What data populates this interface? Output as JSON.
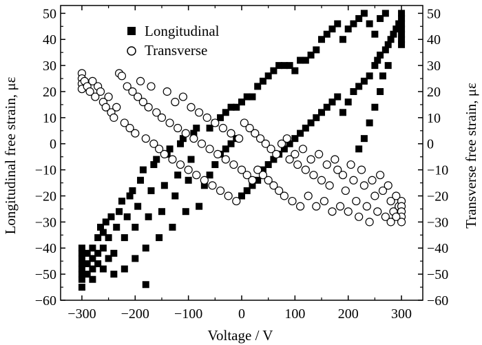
{
  "chart_data": {
    "type": "scatter",
    "xlabel": "Voltage / V",
    "ylabel_left": "Longitudinal free strain, με",
    "ylabel_right": "Transverse free strain, με",
    "xlim": [
      -340,
      340
    ],
    "ylim": [
      -60,
      53
    ],
    "x_ticks": [
      -300,
      -200,
      -100,
      0,
      100,
      200,
      300
    ],
    "y_ticks": [
      -60,
      -50,
      -40,
      -30,
      -20,
      -10,
      0,
      10,
      20,
      30,
      40,
      50
    ],
    "x_tick_labels": [
      "−300",
      "−200",
      "−100",
      "0",
      "100",
      "200",
      "300"
    ],
    "y_tick_labels": [
      "−60",
      "−50",
      "−40",
      "−30",
      "−20",
      "−10",
      "0",
      "10",
      "20",
      "30",
      "40",
      "50"
    ],
    "grid": false,
    "legend_position": "top-center",
    "series": [
      {
        "name": "Longitudinal",
        "marker": "filled-square",
        "color": "#000000",
        "points": [
          [
            -300,
            -55
          ],
          [
            -300,
            -52
          ],
          [
            -300,
            -50
          ],
          [
            -300,
            -48
          ],
          [
            -300,
            -46
          ],
          [
            -300,
            -44
          ],
          [
            -300,
            -42
          ],
          [
            -300,
            -40
          ],
          [
            -290,
            -50
          ],
          [
            -290,
            -46
          ],
          [
            -290,
            -42
          ],
          [
            -280,
            -52
          ],
          [
            -280,
            -48
          ],
          [
            -280,
            -44
          ],
          [
            -280,
            -40
          ],
          [
            -270,
            -46
          ],
          [
            -270,
            -42
          ],
          [
            -270,
            -36
          ],
          [
            -265,
            -32
          ],
          [
            -260,
            -48
          ],
          [
            -260,
            -40
          ],
          [
            -260,
            -34
          ],
          [
            -255,
            -30
          ],
          [
            -250,
            -44
          ],
          [
            -250,
            -36
          ],
          [
            -245,
            -28
          ],
          [
            -240,
            -50
          ],
          [
            -240,
            -42
          ],
          [
            -235,
            -32
          ],
          [
            -230,
            -26
          ],
          [
            -225,
            -22
          ],
          [
            -220,
            -48
          ],
          [
            -220,
            -36
          ],
          [
            -215,
            -28
          ],
          [
            -210,
            -20
          ],
          [
            -205,
            -18
          ],
          [
            -200,
            -44
          ],
          [
            -200,
            -32
          ],
          [
            -195,
            -24
          ],
          [
            -190,
            -14
          ],
          [
            -185,
            -10
          ],
          [
            -180,
            -54
          ],
          [
            -180,
            -40
          ],
          [
            -175,
            -28
          ],
          [
            -170,
            -18
          ],
          [
            -165,
            -8
          ],
          [
            -160,
            -6
          ],
          [
            -155,
            -36
          ],
          [
            -150,
            -26
          ],
          [
            -145,
            -16
          ],
          [
            -140,
            -4
          ],
          [
            -135,
            -2
          ],
          [
            -130,
            -32
          ],
          [
            -125,
            -20
          ],
          [
            -120,
            -12
          ],
          [
            -115,
            0
          ],
          [
            -110,
            2
          ],
          [
            -105,
            -26
          ],
          [
            -100,
            -14
          ],
          [
            -95,
            -6
          ],
          [
            -90,
            4
          ],
          [
            -85,
            6
          ],
          [
            -80,
            -24
          ],
          [
            -70,
            -16
          ],
          [
            -60,
            -12
          ],
          [
            -50,
            -8
          ],
          [
            -40,
            -4
          ],
          [
            -30,
            -2
          ],
          [
            -20,
            0
          ],
          [
            -10,
            2
          ],
          [
            -60,
            6
          ],
          [
            -50,
            8
          ],
          [
            -40,
            10
          ],
          [
            -30,
            12
          ],
          [
            -20,
            14
          ],
          [
            -10,
            14
          ],
          [
            0,
            -20
          ],
          [
            10,
            -18
          ],
          [
            20,
            -16
          ],
          [
            30,
            -14
          ],
          [
            40,
            -10
          ],
          [
            50,
            -8
          ],
          [
            60,
            -6
          ],
          [
            70,
            -4
          ],
          [
            80,
            -2
          ],
          [
            90,
            0
          ],
          [
            0,
            16
          ],
          [
            10,
            18
          ],
          [
            20,
            18
          ],
          [
            30,
            22
          ],
          [
            40,
            24
          ],
          [
            50,
            26
          ],
          [
            60,
            28
          ],
          [
            70,
            30
          ],
          [
            80,
            30
          ],
          [
            90,
            30
          ],
          [
            100,
            2
          ],
          [
            110,
            4
          ],
          [
            120,
            6
          ],
          [
            130,
            8
          ],
          [
            140,
            10
          ],
          [
            150,
            12
          ],
          [
            160,
            14
          ],
          [
            170,
            16
          ],
          [
            180,
            18
          ],
          [
            100,
            28
          ],
          [
            110,
            32
          ],
          [
            120,
            32
          ],
          [
            130,
            34
          ],
          [
            140,
            36
          ],
          [
            150,
            40
          ],
          [
            160,
            42
          ],
          [
            170,
            44
          ],
          [
            180,
            46
          ],
          [
            190,
            12
          ],
          [
            200,
            16
          ],
          [
            210,
            20
          ],
          [
            220,
            22
          ],
          [
            230,
            24
          ],
          [
            240,
            26
          ],
          [
            250,
            30
          ],
          [
            255,
            32
          ],
          [
            260,
            34
          ],
          [
            190,
            40
          ],
          [
            200,
            44
          ],
          [
            210,
            46
          ],
          [
            220,
            48
          ],
          [
            230,
            50
          ],
          [
            240,
            46
          ],
          [
            250,
            42
          ],
          [
            260,
            48
          ],
          [
            270,
            50
          ],
          [
            270,
            36
          ],
          [
            275,
            38
          ],
          [
            280,
            40
          ],
          [
            285,
            42
          ],
          [
            290,
            44
          ],
          [
            295,
            46
          ],
          [
            300,
            38
          ],
          [
            300,
            40
          ],
          [
            300,
            42
          ],
          [
            300,
            44
          ],
          [
            300,
            46
          ],
          [
            300,
            48
          ],
          [
            300,
            50
          ],
          [
            220,
            -2
          ],
          [
            230,
            2
          ],
          [
            240,
            8
          ],
          [
            250,
            14
          ],
          [
            260,
            20
          ],
          [
            265,
            26
          ],
          [
            275,
            30
          ]
        ]
      },
      {
        "name": "Transverse",
        "marker": "open-circle",
        "color": "#000000",
        "points": [
          [
            -300,
            27
          ],
          [
            -300,
            25
          ],
          [
            -300,
            23
          ],
          [
            -300,
            21
          ],
          [
            -295,
            24
          ],
          [
            -290,
            22
          ],
          [
            -285,
            20
          ],
          [
            -280,
            24
          ],
          [
            -275,
            18
          ],
          [
            -270,
            22
          ],
          [
            -265,
            20
          ],
          [
            -260,
            16
          ],
          [
            -255,
            14
          ],
          [
            -250,
            18
          ],
          [
            -245,
            12
          ],
          [
            -240,
            10
          ],
          [
            -235,
            14
          ],
          [
            -230,
            27
          ],
          [
            -225,
            26
          ],
          [
            -220,
            8
          ],
          [
            -215,
            22
          ],
          [
            -210,
            6
          ],
          [
            -205,
            20
          ],
          [
            -200,
            4
          ],
          [
            -195,
            18
          ],
          [
            -190,
            24
          ],
          [
            -185,
            16
          ],
          [
            -180,
            2
          ],
          [
            -175,
            14
          ],
          [
            -170,
            22
          ],
          [
            -165,
            0
          ],
          [
            -160,
            12
          ],
          [
            -155,
            -2
          ],
          [
            -150,
            10
          ],
          [
            -145,
            -4
          ],
          [
            -140,
            20
          ],
          [
            -135,
            8
          ],
          [
            -130,
            -6
          ],
          [
            -125,
            16
          ],
          [
            -120,
            6
          ],
          [
            -115,
            -8
          ],
          [
            -110,
            18
          ],
          [
            -105,
            4
          ],
          [
            -100,
            -10
          ],
          [
            -95,
            14
          ],
          [
            -90,
            2
          ],
          [
            -85,
            -12
          ],
          [
            -80,
            12
          ],
          [
            -75,
            0
          ],
          [
            -70,
            -14
          ],
          [
            -65,
            10
          ],
          [
            -60,
            -2
          ],
          [
            -55,
            -16
          ],
          [
            -50,
            8
          ],
          [
            -45,
            -4
          ],
          [
            -40,
            -18
          ],
          [
            -35,
            6
          ],
          [
            -30,
            -6
          ],
          [
            -25,
            -20
          ],
          [
            -20,
            4
          ],
          [
            -15,
            -8
          ],
          [
            -10,
            -22
          ],
          [
            -5,
            2
          ],
          [
            0,
            -10
          ],
          [
            5,
            8
          ],
          [
            10,
            -12
          ],
          [
            15,
            6
          ],
          [
            20,
            -14
          ],
          [
            25,
            4
          ],
          [
            30,
            -10
          ],
          [
            35,
            2
          ],
          [
            40,
            -12
          ],
          [
            45,
            0
          ],
          [
            50,
            -14
          ],
          [
            55,
            -2
          ],
          [
            60,
            -16
          ],
          [
            65,
            -4
          ],
          [
            70,
            -18
          ],
          [
            75,
            0
          ],
          [
            80,
            -20
          ],
          [
            85,
            2
          ],
          [
            90,
            -6
          ],
          [
            95,
            -22
          ],
          [
            100,
            -4
          ],
          [
            105,
            -8
          ],
          [
            110,
            -24
          ],
          [
            115,
            -2
          ],
          [
            120,
            -10
          ],
          [
            125,
            -20
          ],
          [
            130,
            -6
          ],
          [
            135,
            -12
          ],
          [
            140,
            -24
          ],
          [
            145,
            -4
          ],
          [
            150,
            -14
          ],
          [
            155,
            -22
          ],
          [
            160,
            -8
          ],
          [
            165,
            -16
          ],
          [
            170,
            -26
          ],
          [
            175,
            -6
          ],
          [
            180,
            -10
          ],
          [
            185,
            -24
          ],
          [
            190,
            -12
          ],
          [
            195,
            -18
          ],
          [
            200,
            -26
          ],
          [
            205,
            -8
          ],
          [
            210,
            -14
          ],
          [
            215,
            -22
          ],
          [
            220,
            -28
          ],
          [
            225,
            -10
          ],
          [
            230,
            -16
          ],
          [
            235,
            -24
          ],
          [
            240,
            -30
          ],
          [
            245,
            -14
          ],
          [
            250,
            -20
          ],
          [
            255,
            -26
          ],
          [
            260,
            -12
          ],
          [
            265,
            -18
          ],
          [
            270,
            -28
          ],
          [
            275,
            -16
          ],
          [
            280,
            -22
          ],
          [
            285,
            -26
          ],
          [
            290,
            -20
          ],
          [
            295,
            -24
          ],
          [
            300,
            -22
          ],
          [
            300,
            -24
          ],
          [
            300,
            -26
          ],
          [
            300,
            -28
          ],
          [
            300,
            -30
          ],
          [
            290,
            -28
          ],
          [
            280,
            -30
          ]
        ]
      }
    ]
  }
}
